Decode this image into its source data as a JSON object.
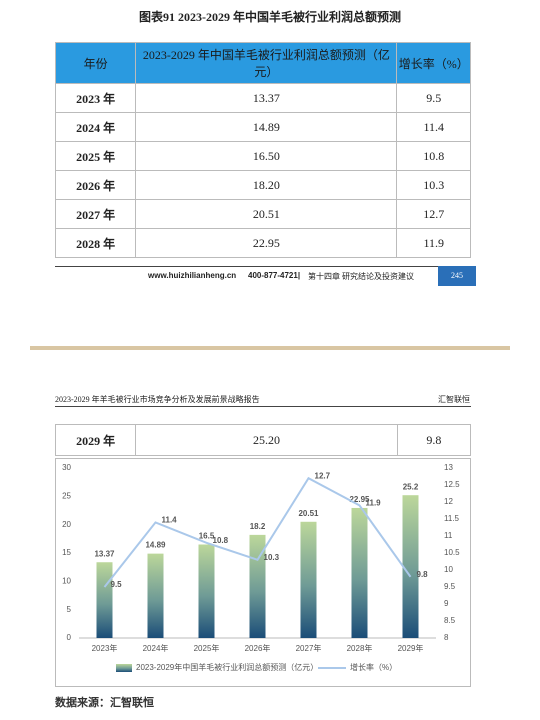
{
  "page1": {
    "title": "图表91  2023-2029 年中国羊毛被行业利润总额预测",
    "table": {
      "columns": [
        "年份",
        "2023-2029 年中国羊毛被行业利润总额预测（亿元）",
        "增长率（%）"
      ],
      "rows": [
        [
          "2023 年",
          "13.37",
          "9.5"
        ],
        [
          "2024 年",
          "14.89",
          "11.4"
        ],
        [
          "2025 年",
          "16.50",
          "10.8"
        ],
        [
          "2026 年",
          "18.20",
          "10.3"
        ],
        [
          "2027 年",
          "20.51",
          "12.7"
        ],
        [
          "2028 年",
          "22.95",
          "11.9"
        ]
      ]
    },
    "footer": {
      "url": "www.huizhilianheng.cn",
      "phone": "400-877-4721|",
      "chapter": "第十四章  研究结论及投资建议",
      "page_number": "245"
    }
  },
  "page2": {
    "header": {
      "left": "2023-2029 年羊毛被行业市场竞争分析及发展前景战略报告",
      "right": "汇智联恒"
    },
    "table_row": [
      "2029 年",
      "25.20",
      "9.8"
    ],
    "source": "数据来源：汇智联恒"
  },
  "chart_data": {
    "type": "bar-line",
    "categories": [
      "2023年",
      "2024年",
      "2025年",
      "2026年",
      "2027年",
      "2028年",
      "2029年"
    ],
    "series": [
      {
        "name": "2023-2029年中国羊毛被行业利润总额预测（亿元）",
        "type": "bar",
        "color": "#6f9b96",
        "label_color": "#333333",
        "values": [
          13.37,
          14.89,
          16.5,
          18.2,
          20.51,
          22.95,
          25.2
        ]
      },
      {
        "name": "增长率（%）",
        "type": "line",
        "axis": "y2",
        "color": "#aac8ea",
        "label_color": "#e02020",
        "values": [
          9.5,
          11.4,
          10.8,
          10.3,
          12.7,
          11.9,
          9.8
        ]
      }
    ],
    "ylim": [
      0,
      30
    ],
    "yticks": [
      0,
      5,
      10,
      15,
      20,
      25,
      30
    ],
    "y2lim": [
      8,
      13
    ],
    "y2ticks": [
      8,
      8.5,
      9,
      9.5,
      10,
      10.5,
      11,
      11.5,
      12,
      12.5,
      13
    ],
    "grid": false,
    "legend": "bottom"
  }
}
